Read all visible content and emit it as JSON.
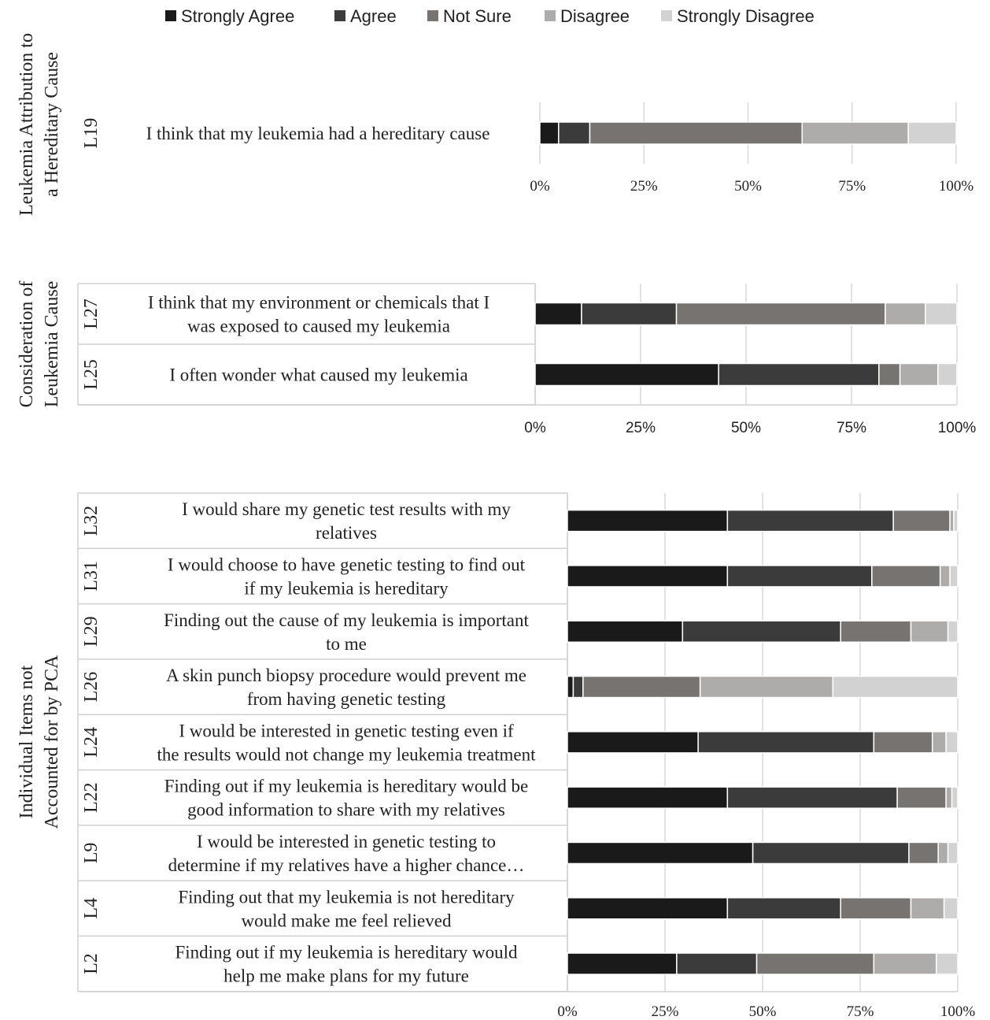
{
  "legend": {
    "position": "top",
    "items": [
      {
        "label": "Strongly Agree",
        "color": "#1a1a1a"
      },
      {
        "label": "Agree",
        "color": "#3b3b3b"
      },
      {
        "label": "Not Sure",
        "color": "#767371"
      },
      {
        "label": "Disagree",
        "color": "#aeacab"
      },
      {
        "label": "Strongly Disagree",
        "color": "#d3d2d2"
      }
    ]
  },
  "chart_data": [
    {
      "type": "bar",
      "orientation": "horizontal",
      "stacked": "percent",
      "group_label": "Leukemia Attribution to a Hereditary Cause",
      "xlim": [
        0,
        100
      ],
      "x_ticks": [
        "0%",
        "25%",
        "50%",
        "75%",
        "100%"
      ],
      "grid": true,
      "items": [
        {
          "code": "L19",
          "label": "I think that my leukemia had a hereditary cause",
          "values": [
            4.5,
            7.5,
            51,
            25.5,
            11.5
          ]
        }
      ]
    },
    {
      "type": "bar",
      "orientation": "horizontal",
      "stacked": "percent",
      "group_label": "Consideration of Leukemia Cause",
      "xlim": [
        0,
        100
      ],
      "x_ticks": [
        "0%",
        "25%",
        "50%",
        "75%",
        "100%"
      ],
      "grid": true,
      "items": [
        {
          "code": "L27",
          "label": "I think that my environment or chemicals that I was exposed to caused my leukemia",
          "values": [
            11,
            22.5,
            49.5,
            9.5,
            7.5
          ]
        },
        {
          "code": "L25",
          "label": "I often wonder what caused my leukemia",
          "values": [
            43.5,
            38,
            5,
            9,
            4.5
          ]
        }
      ]
    },
    {
      "type": "bar",
      "orientation": "horizontal",
      "stacked": "percent",
      "group_label": "Individual Items not Accounted for by PCA",
      "xlim": [
        0,
        100
      ],
      "x_ticks": [
        "0%",
        "25%",
        "50%",
        "75%",
        "100%"
      ],
      "grid": true,
      "items": [
        {
          "code": "L32",
          "label": "I would share my genetic test results with my relatives",
          "values": [
            41,
            42.5,
            14.5,
            1,
            1
          ]
        },
        {
          "code": "L31",
          "label": "I would choose to have genetic testing to find out if my leukemia is hereditary",
          "values": [
            41,
            37,
            17.5,
            2.5,
            2
          ]
        },
        {
          "code": "L29",
          "label": "Finding out the cause of my leukemia is important to me",
          "values": [
            29.5,
            40.5,
            18,
            9.5,
            2.5
          ]
        },
        {
          "code": "L26",
          "label": "A skin punch biopsy procedure would prevent me from having genetic testing",
          "values": [
            1.5,
            2.5,
            30,
            34,
            32
          ]
        },
        {
          "code": "L24",
          "label": "I would be interested in genetic testing even if the results would not change my leukemia treatment",
          "values": [
            33.5,
            45,
            15,
            3.5,
            3
          ]
        },
        {
          "code": "L22",
          "label": "Finding out if my leukemia is hereditary would be good information to share with my relatives",
          "values": [
            41,
            43.5,
            12.5,
            1.5,
            1.5
          ]
        },
        {
          "code": "L9",
          "label": "I would be interested in genetic testing to determine if my relatives have a higher chance…",
          "values": [
            47.5,
            40,
            7.5,
            2.5,
            2.5
          ]
        },
        {
          "code": "L4",
          "label": "Finding out that my leukemia is not hereditary would make me feel relieved",
          "values": [
            41,
            29,
            18,
            8.5,
            3.5
          ]
        },
        {
          "code": "L2",
          "label": "Finding out if my leukemia is hereditary would help me make plans for my future",
          "values": [
            28,
            20.5,
            30,
            16,
            5.5
          ]
        }
      ]
    }
  ]
}
